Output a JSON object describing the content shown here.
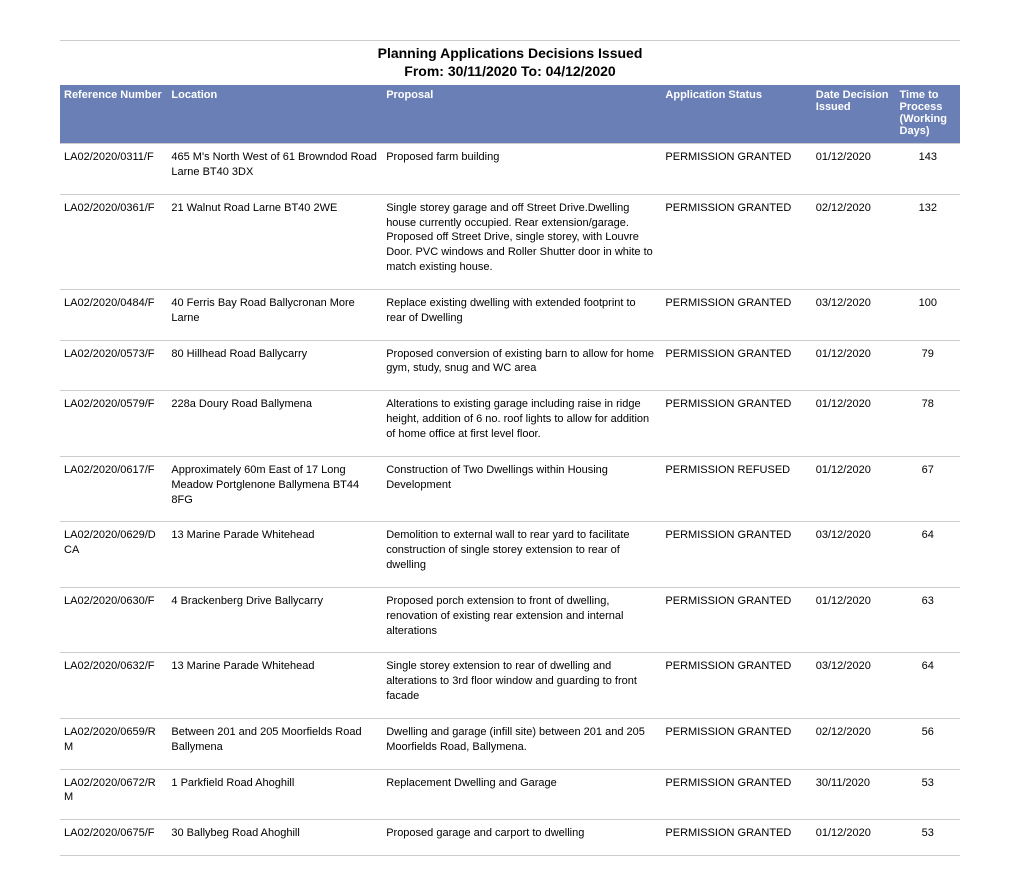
{
  "header": {
    "title": "Planning Applications Decisions Issued",
    "subtitle": "From: 30/11/2020 To: 04/12/2020"
  },
  "table": {
    "header_bg": "#6a7fb5",
    "header_fg": "#ffffff",
    "border_color": "#cccccc",
    "columns": [
      "Reference Number",
      "Location",
      "Proposal",
      "Application Status",
      "Date Decision Issued",
      "Time to Process (Working Days)"
    ],
    "rows": [
      {
        "ref": "LA02/2020/0311/F",
        "loc": "465 M's North West of 61 Browndod Road Larne BT40 3DX",
        "prop": " Proposed farm building",
        "stat": "PERMISSION GRANTED",
        "date": "01/12/2020",
        "days": "143"
      },
      {
        "ref": "LA02/2020/0361/F",
        "loc": "21 Walnut Road Larne BT40 2WE",
        "prop": "Single storey garage and off Street Drive.Dwelling house currently occupied. Rear extension/garage. Proposed off Street Drive, single storey, with Louvre Door. PVC windows and Roller Shutter door in white to match existing house.",
        "stat": "PERMISSION GRANTED",
        "date": "02/12/2020",
        "days": "132"
      },
      {
        "ref": "LA02/2020/0484/F",
        "loc": "40 Ferris Bay Road Ballycronan More Larne",
        "prop": "Replace existing dwelling with extended footprint to rear of Dwelling",
        "stat": "PERMISSION GRANTED",
        "date": "03/12/2020",
        "days": "100"
      },
      {
        "ref": "LA02/2020/0573/F",
        "loc": "80 Hillhead Road Ballycarry",
        "prop": "Proposed conversion of existing barn to allow for home gym, study, snug and WC area",
        "stat": "PERMISSION GRANTED",
        "date": "01/12/2020",
        "days": "79"
      },
      {
        "ref": "LA02/2020/0579/F",
        "loc": "228a Doury Road Ballymena",
        "prop": "Alterations to existing garage including raise in ridge height, addition of 6 no. roof lights to allow for addition of home office at first level floor.",
        "stat": "PERMISSION GRANTED",
        "date": "01/12/2020",
        "days": "78"
      },
      {
        "ref": "LA02/2020/0617/F",
        "loc": "Approximately 60m East of 17 Long Meadow Portglenone Ballymena BT44 8FG",
        "prop": "Construction of Two Dwellings within Housing Development",
        "stat": "PERMISSION REFUSED",
        "date": "01/12/2020",
        "days": "67"
      },
      {
        "ref": "LA02/2020/0629/DCA",
        "loc": "13 Marine Parade Whitehead",
        "prop": "Demolition to external wall to rear yard to facilitate construction of single storey extension to rear of dwelling",
        "stat": "PERMISSION GRANTED",
        "date": "03/12/2020",
        "days": "64"
      },
      {
        "ref": "LA02/2020/0630/F",
        "loc": "4 Brackenberg Drive Ballycarry",
        "prop": "Proposed porch extension to front of dwelling, renovation of existing rear extension and internal alterations",
        "stat": "PERMISSION GRANTED",
        "date": "01/12/2020",
        "days": "63"
      },
      {
        "ref": "LA02/2020/0632/F",
        "loc": "13 Marine Parade Whitehead",
        "prop": "Single storey extension to rear of dwelling and alterations to 3rd floor window and guarding to front facade",
        "stat": "PERMISSION GRANTED",
        "date": "03/12/2020",
        "days": "64"
      },
      {
        "ref": "LA02/2020/0659/RM",
        "loc": "Between 201 and 205 Moorfields Road Ballymena",
        "prop": "Dwelling and garage (infill site) between 201 and 205 Moorfields Road, Ballymena.",
        "stat": "PERMISSION GRANTED",
        "date": "02/12/2020",
        "days": "56"
      },
      {
        "ref": "LA02/2020/0672/RM",
        "loc": "1 Parkfield Road Ahoghill",
        "prop": " Replacement Dwelling and Garage",
        "stat": "PERMISSION GRANTED",
        "date": "30/11/2020",
        "days": "53"
      },
      {
        "ref": "LA02/2020/0675/F",
        "loc": "30 Ballybeg Road Ahoghill",
        "prop": "Proposed garage and carport to dwelling",
        "stat": "PERMISSION GRANTED",
        "date": "01/12/2020",
        "days": "53"
      }
    ]
  }
}
